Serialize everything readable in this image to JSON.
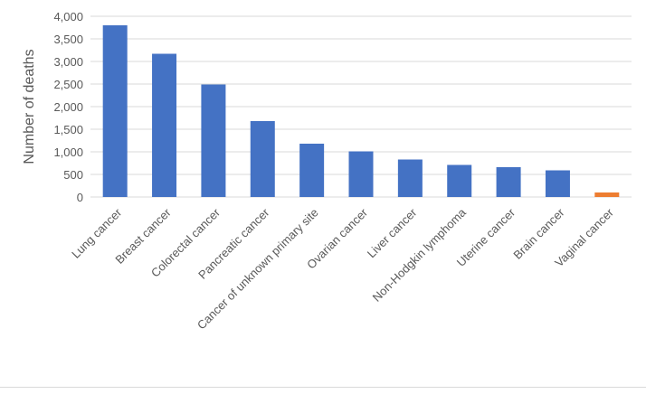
{
  "chart_data": {
    "type": "bar",
    "title": "",
    "xlabel": "",
    "ylabel": "Number of deaths",
    "ylim": [
      0,
      4000
    ],
    "yticks": [
      0,
      500,
      1000,
      1500,
      2000,
      2500,
      3000,
      3500,
      4000
    ],
    "ytick_labels": [
      "0",
      "500",
      "1,000",
      "1,500",
      "2,000",
      "2,500",
      "3,000",
      "3,500",
      "4,000"
    ],
    "grid": true,
    "legend": "none",
    "categories": [
      "Lung cancer",
      "Breast cancer",
      "Colorectal cancer",
      "Pancreatic cancer",
      "Cancer of unknown primary site",
      "Ovarian cancer",
      "Liver cancer",
      "Non-Hodgkin lymphoma",
      "Uterine cancer",
      "Brain cancer",
      "Vaginal cancer"
    ],
    "values": [
      3800,
      3170,
      2490,
      1680,
      1180,
      1010,
      830,
      710,
      660,
      590,
      100
    ],
    "colors": [
      "#4472c4",
      "#4472c4",
      "#4472c4",
      "#4472c4",
      "#4472c4",
      "#4472c4",
      "#4472c4",
      "#4472c4",
      "#4472c4",
      "#4472c4",
      "#ed7d31"
    ],
    "gridline_color": "#d9d9d9",
    "text_color": "#595959"
  }
}
